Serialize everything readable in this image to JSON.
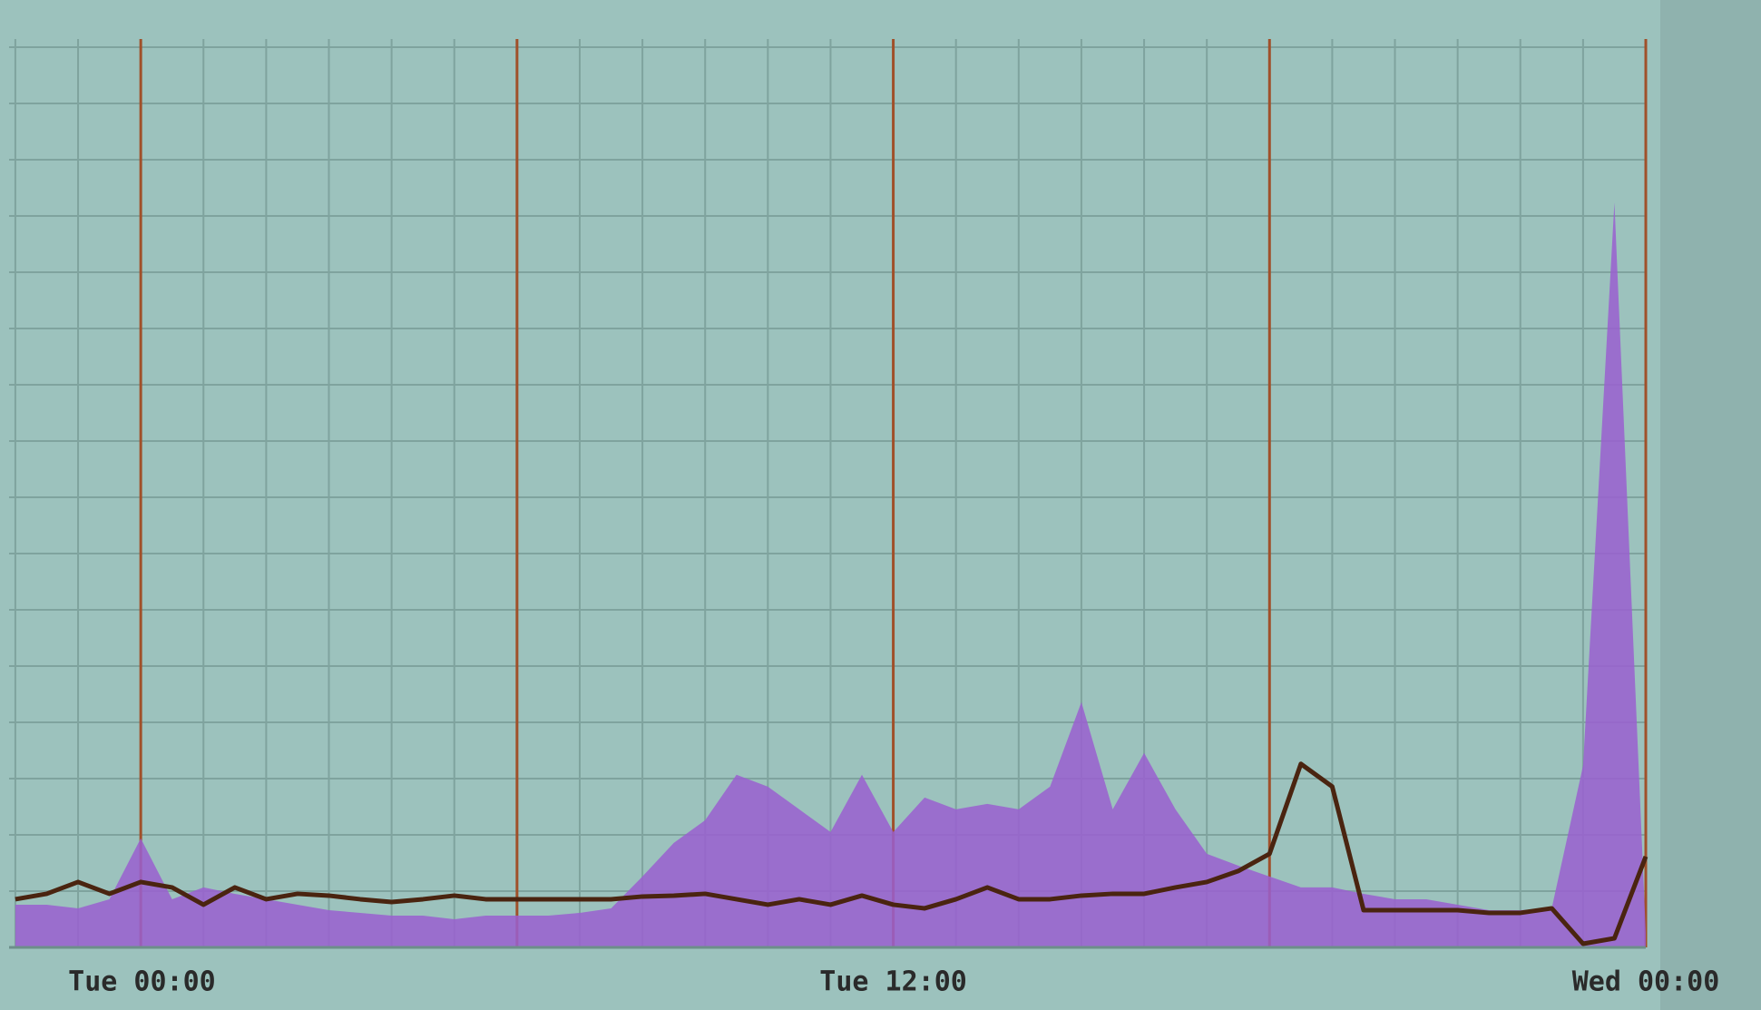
{
  "chart_data": {
    "type": "area-line",
    "x": [
      -2,
      -1.5,
      -1,
      -0.5,
      0,
      0.5,
      1,
      1.5,
      2,
      2.5,
      3,
      3.5,
      4,
      4.5,
      5,
      5.5,
      6,
      6.5,
      7,
      7.5,
      8,
      8.5,
      9,
      9.5,
      10,
      10.5,
      11,
      11.5,
      12,
      12.5,
      13,
      13.5,
      14,
      14.5,
      15,
      15.5,
      16,
      16.5,
      17,
      17.5,
      18,
      18.5,
      19,
      19.5,
      20,
      20.5,
      21,
      21.5,
      22,
      22.5,
      23,
      23.5,
      24
    ],
    "series": [
      {
        "color": "#9a5fd0",
        "values": [
          4.7,
          4.7,
          4.3,
          5.3,
          12,
          5.3,
          6.6,
          5.9,
          5.3,
          4.7,
          4.1,
          3.8,
          3.5,
          3.5,
          3.1,
          3.5,
          3.5,
          3.5,
          3.8,
          4.3,
          7.8,
          11.5,
          14,
          19,
          17.7,
          15.2,
          12.7,
          19,
          12.7,
          16.5,
          15.2,
          15.8,
          15.2,
          17.7,
          27,
          15.2,
          21.4,
          15.2,
          10.3,
          9,
          7.8,
          6.6,
          6.6,
          5.9,
          5.3,
          5.3,
          4.7,
          4.1,
          4.1,
          4.3,
          20,
          82,
          1.6
        ]
      },
      {
        "color": "#4a2410",
        "values": [
          5.3,
          5.9,
          7.2,
          5.9,
          7.2,
          6.6,
          4.7,
          6.6,
          5.3,
          5.9,
          5.7,
          5.3,
          5,
          5.3,
          5.7,
          5.3,
          5.3,
          5.3,
          5.3,
          5.3,
          5.6,
          5.7,
          5.9,
          5.3,
          4.7,
          5.3,
          4.7,
          5.7,
          4.7,
          4.3,
          5.3,
          6.6,
          5.3,
          5.3,
          5.7,
          5.9,
          5.9,
          6.6,
          7.2,
          8.4,
          10.3,
          20.2,
          17.7,
          4.1,
          4.1,
          4.1,
          4.1,
          3.8,
          3.8,
          4.3,
          0.4,
          1,
          10
        ]
      }
    ],
    "xlim": [
      -2.1,
      24
    ],
    "xticks": [
      {
        "value": 0,
        "label": "Tue 00:00"
      },
      {
        "value": 6,
        "label": null
      },
      {
        "value": 12,
        "label": "Tue 12:00"
      },
      {
        "value": 18,
        "label": null
      },
      {
        "value": 24,
        "label": "Wed 00:00"
      }
    ],
    "ylim": [
      0,
      100
    ],
    "grid": true
  }
}
